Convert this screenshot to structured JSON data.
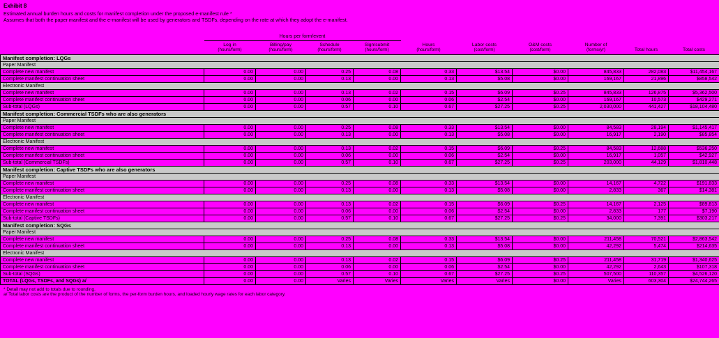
{
  "title": {
    "exhibit": "Exhibit 8",
    "line1": "Estimated annual burden hours and costs for manifest completion under the proposed e-manifest rule *",
    "line2": "Assumes that both the paper manifest and the e-manifest will be used by generators and TSDFs, depending on the rate at which they adopt the e-manifest."
  },
  "table": {
    "spanner": "Hours per form/event",
    "columns": [
      {
        "label": "Log in",
        "sub": "(hours/form)"
      },
      {
        "label": "Billing/pay",
        "sub": "(hours/form)"
      },
      {
        "label": "Schedule",
        "sub": "(hours/form)"
      },
      {
        "label": "Sign/submit",
        "sub": "(hours/form)"
      },
      {
        "label": "Hours",
        "sub": "(hours/form)"
      },
      {
        "label": "Labor costs",
        "sub": "(cost/form)"
      },
      {
        "label": "O&M costs",
        "sub": "(cost/form)"
      },
      {
        "label": "Number of",
        "sub": "(forms/yr)"
      },
      {
        "label": "Total hours",
        "sub": ""
      },
      {
        "label": "Total costs",
        "sub": ""
      }
    ],
    "rows": [
      {
        "type": "section",
        "label": "Manifest completion:  LQGs"
      },
      {
        "type": "subsection",
        "label": "Paper Manifest"
      },
      {
        "type": "data",
        "label": "Complete new manifest",
        "values": [
          "0.00",
          "0.00",
          "0.25",
          "0.08",
          "0.33",
          "$13.54",
          "$0.00",
          "845,833",
          "282,083",
          "$11,454,167"
        ]
      },
      {
        "type": "data",
        "label": "Complete manifest continuation sheet",
        "values": [
          "0.00",
          "0.00",
          "0.13",
          "0.00",
          "0.13",
          "$5.08",
          "$0.00",
          "169,167",
          "21,896",
          "$858,542"
        ]
      },
      {
        "type": "subsection",
        "label": "Electronic Manifest"
      },
      {
        "type": "data",
        "label": "Complete new manifest",
        "values": [
          "0.00",
          "0.00",
          "0.13",
          "0.02",
          "0.15",
          "$6.09",
          "$0.25",
          "845,833",
          "126,875",
          "$5,362,500"
        ]
      },
      {
        "type": "data",
        "label": "Complete manifest continuation sheet",
        "values": [
          "0.00",
          "0.00",
          "0.06",
          "0.00",
          "0.06",
          "$2.54",
          "$0.00",
          "169,167",
          "10,573",
          "$429,271"
        ]
      },
      {
        "type": "subtotal",
        "label": "Sub-total (LQGs)",
        "values": [
          "0.00",
          "0.00",
          "0.57",
          "0.10",
          "0.67",
          "$27.25",
          "$0.25",
          "2,030,000",
          "441,427",
          "$18,104,480"
        ]
      },
      {
        "type": "section",
        "label": "Manifest completion:  Commercial TSDFs who are also generators"
      },
      {
        "type": "subsection",
        "label": "Paper Manifest"
      },
      {
        "type": "data",
        "label": "Complete new manifest",
        "values": [
          "0.00",
          "0.00",
          "0.25",
          "0.08",
          "0.33",
          "$13.54",
          "$0.00",
          "84,583",
          "28,194",
          "$1,145,417"
        ]
      },
      {
        "type": "data",
        "label": "Complete manifest continuation sheet",
        "values": [
          "0.00",
          "0.00",
          "0.13",
          "0.00",
          "0.13",
          "$5.08",
          "$0.00",
          "16,917",
          "2,190",
          "$85,854"
        ]
      },
      {
        "type": "subsection",
        "label": "Electronic Manifest"
      },
      {
        "type": "data",
        "label": "Complete new manifest",
        "values": [
          "0.00",
          "0.00",
          "0.13",
          "0.02",
          "0.15",
          "$6.09",
          "$0.25",
          "84,583",
          "12,688",
          "$536,250"
        ]
      },
      {
        "type": "data",
        "label": "Complete manifest continuation sheet",
        "values": [
          "0.00",
          "0.00",
          "0.06",
          "0.00",
          "0.06",
          "$2.54",
          "$0.00",
          "16,917",
          "1,057",
          "$42,927"
        ]
      },
      {
        "type": "subtotal",
        "label": "Sub-total (Commercial TSDFs)",
        "values": [
          "0.00",
          "0.00",
          "0.57",
          "0.10",
          "0.67",
          "$27.25",
          "$0.25",
          "203,000",
          "44,129",
          "$1,810,448"
        ]
      },
      {
        "type": "section",
        "label": "Manifest completion:  Captive TSDFs who are also generators"
      },
      {
        "type": "subsection",
        "label": "Paper Manifest"
      },
      {
        "type": "data",
        "label": "Complete new manifest",
        "values": [
          "0.00",
          "0.00",
          "0.25",
          "0.08",
          "0.33",
          "$13.54",
          "$0.00",
          "14,167",
          "4,722",
          "$191,833"
        ]
      },
      {
        "type": "data",
        "label": "Complete manifest continuation sheet",
        "values": [
          "0.00",
          "0.00",
          "0.13",
          "0.00",
          "0.13",
          "$5.08",
          "$0.00",
          "2,833",
          "367",
          "$14,381"
        ]
      },
      {
        "type": "subsection",
        "label": "Electronic Manifest"
      },
      {
        "type": "data",
        "label": "Complete new manifest",
        "values": [
          "0.00",
          "0.00",
          "0.13",
          "0.02",
          "0.15",
          "$6.09",
          "$0.25",
          "14,167",
          "2,125",
          "$89,813"
        ]
      },
      {
        "type": "data",
        "label": "Complete manifest continuation sheet",
        "values": [
          "0.00",
          "0.00",
          "0.06",
          "0.00",
          "0.06",
          "$2.54",
          "$0.00",
          "2,833",
          "177",
          "$7,190"
        ]
      },
      {
        "type": "subtotal",
        "label": "Sub-total (Captive TSDFs)",
        "values": [
          "0.00",
          "0.00",
          "0.57",
          "0.10",
          "0.67",
          "$27.25",
          "$0.25",
          "34,000",
          "7,391",
          "$303,217"
        ]
      },
      {
        "type": "section",
        "label": "Manifest completion:  SQGs"
      },
      {
        "type": "subsection",
        "label": "Paper Manifest"
      },
      {
        "type": "data",
        "label": "Complete new manifest",
        "values": [
          "0.00",
          "0.00",
          "0.25",
          "0.08",
          "0.33",
          "$13.54",
          "$0.00",
          "211,458",
          "70,521",
          "$2,863,542"
        ]
      },
      {
        "type": "data",
        "label": "Complete manifest continuation sheet",
        "values": [
          "0.00",
          "0.00",
          "0.13",
          "0.00",
          "0.13",
          "$5.08",
          "$0.00",
          "42,292",
          "5,474",
          "$214,635"
        ]
      },
      {
        "type": "subsection",
        "label": "Electronic Manifest"
      },
      {
        "type": "data",
        "label": "Complete new manifest",
        "values": [
          "0.00",
          "0.00",
          "0.13",
          "0.02",
          "0.15",
          "$6.09",
          "$0.25",
          "211,458",
          "31,719",
          "$1,340,625"
        ]
      },
      {
        "type": "data",
        "label": "Complete manifest continuation sheet",
        "values": [
          "0.00",
          "0.00",
          "0.06",
          "0.00",
          "0.06",
          "$2.54",
          "$0.00",
          "42,292",
          "2,643",
          "$107,318"
        ]
      },
      {
        "type": "subtotal",
        "label": "Sub-total (SQGs)",
        "values": [
          "0.00",
          "0.00",
          "0.57",
          "0.10",
          "0.67",
          "$27.25",
          "$0.25",
          "507,500",
          "110,357",
          "$4,526,120"
        ]
      },
      {
        "type": "total",
        "label": "TOTAL (LQGs, TSDFs, and SQGs) a/",
        "values": [
          "0.00",
          "0.00",
          "Varies",
          "Varies",
          "Varies",
          "Varies",
          "$0.00",
          "Varies",
          "603,304",
          "$24,744,265"
        ]
      }
    ]
  },
  "footnotes": {
    "line1": "* Detail may not add to totals due to rounding.",
    "line2": "a/ Total labor costs are the product of the number of forms, the per-form burden hours, and loaded hourly wage rates for each labor category."
  },
  "colors": {
    "background": "#FF00FF",
    "band": "#C9C9C9",
    "text": "#000000"
  }
}
